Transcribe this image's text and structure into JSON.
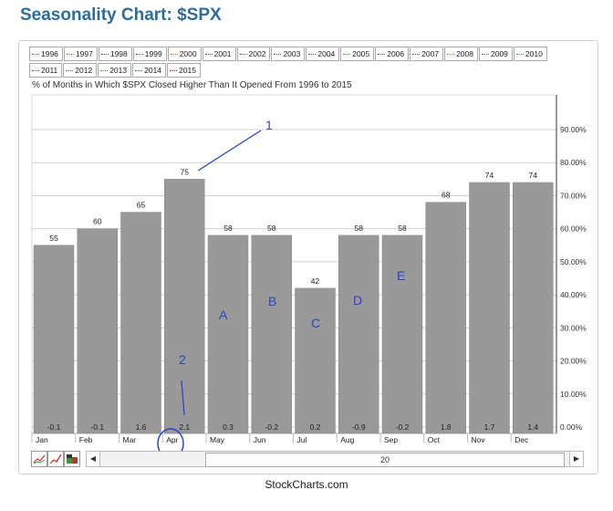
{
  "title": "Seasonality Chart: $SPX",
  "subtitle": "% of Months in Which $SPX Closed Higher Than It Opened From 1996 to 2015",
  "footer": "StockCharts.com",
  "legend": [
    {
      "label": "1996",
      "color": "#c0308a"
    },
    {
      "label": "1997",
      "color": "#30a030"
    },
    {
      "label": "1998",
      "color": "#3050c0"
    },
    {
      "label": "1999",
      "color": "#555555"
    },
    {
      "label": "2000",
      "color": "#e07020"
    },
    {
      "label": "2001",
      "color": "#555555"
    },
    {
      "label": "2002",
      "color": "#3050c0"
    },
    {
      "label": "2003",
      "color": "#555555"
    },
    {
      "label": "2004",
      "color": "#c0308a"
    },
    {
      "label": "2005",
      "color": "#30a030"
    },
    {
      "label": "2006",
      "color": "#3050c0"
    },
    {
      "label": "2007",
      "color": "#555555"
    },
    {
      "label": "2008",
      "color": "#e07020"
    },
    {
      "label": "2009",
      "color": "#9040c0"
    },
    {
      "label": "2010",
      "color": "#20a0a0"
    },
    {
      "label": "2011",
      "color": "#555555"
    },
    {
      "label": "2012",
      "color": "#c030c0"
    },
    {
      "label": "2013",
      "color": "#30a030"
    },
    {
      "label": "2014",
      "color": "#3050c0"
    },
    {
      "label": "2015",
      "color": "#c03030"
    }
  ],
  "scrollbar": {
    "value": "20"
  },
  "chart_data": {
    "type": "bar",
    "categories": [
      "Jan",
      "Feb",
      "Mar",
      "Apr",
      "May",
      "Jun",
      "Jul",
      "Aug",
      "Sep",
      "Oct",
      "Nov",
      "Dec"
    ],
    "values": [
      55,
      60,
      65,
      75,
      58,
      58,
      42,
      58,
      58,
      68,
      74,
      74
    ],
    "avg_returns": [
      "-0.1",
      "-0.1",
      "1.6",
      "2.1",
      "0.3",
      "-0.2",
      "0.2",
      "-0.9",
      "-0.2",
      "1.8",
      "1.7",
      "1.4"
    ],
    "ylim": [
      0,
      100
    ],
    "yticks": [
      0,
      10,
      20,
      30,
      40,
      50,
      60,
      70,
      80,
      90
    ],
    "ytick_labels": [
      "0.00%",
      "10.00%",
      "20.00%",
      "30.00%",
      "40.00%",
      "50.00%",
      "60.00%",
      "70.00%",
      "80.00%",
      "90.00%"
    ],
    "bar_color": "#999999",
    "grid": true,
    "annotations": [
      {
        "text": "1",
        "target": "Apr"
      },
      {
        "text": "2",
        "target": "Apr"
      },
      {
        "text": "A",
        "target": "May"
      },
      {
        "text": "B",
        "target": "Jun"
      },
      {
        "text": "C",
        "target": "Jul"
      },
      {
        "text": "D",
        "target": "Aug"
      },
      {
        "text": "E",
        "target": "Sep"
      }
    ],
    "annotation_color": "#2846c8"
  }
}
